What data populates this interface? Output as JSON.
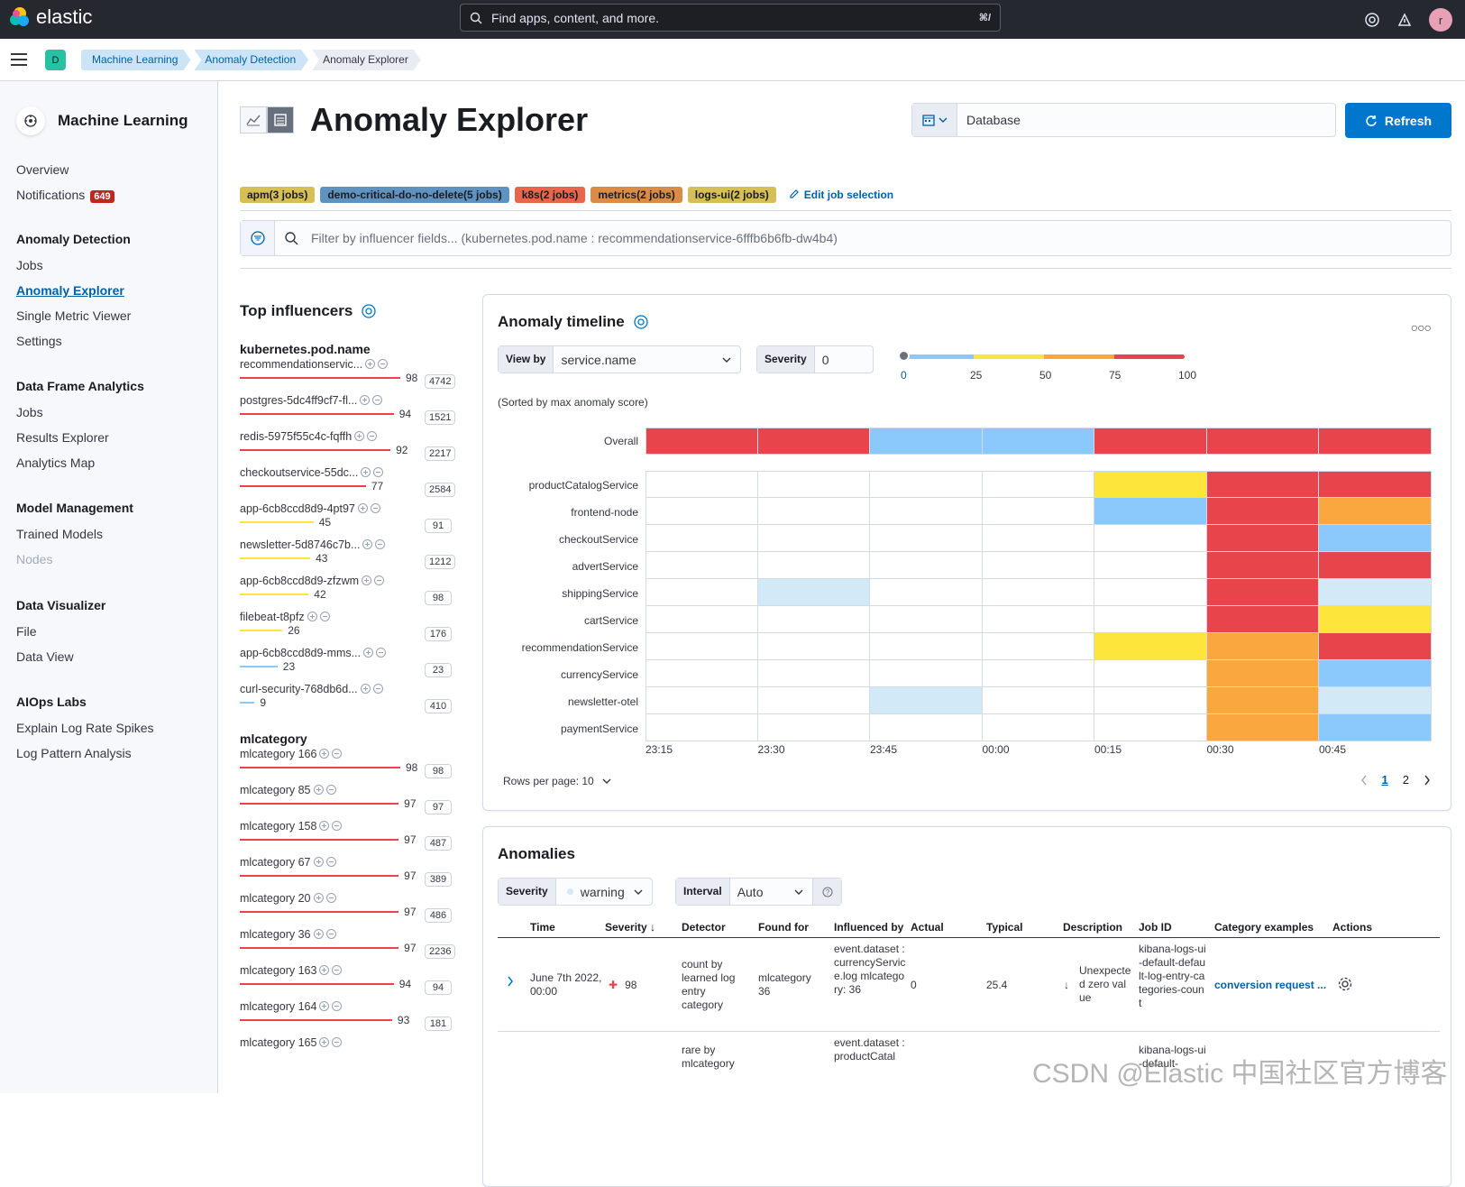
{
  "app": {
    "brand": "elastic",
    "search_placeholder": "Find apps, content, and more.",
    "search_shortcut": "⌘/",
    "avatar": "r",
    "space": "D"
  },
  "breadcrumbs": [
    "Machine Learning",
    "Anomaly Detection",
    "Anomaly Explorer"
  ],
  "sidebar": {
    "title": "Machine Learning",
    "overview": "Overview",
    "notifications": "Notifications",
    "notif_count": "649",
    "sec_ad": "Anomaly Detection",
    "ad_jobs": "Jobs",
    "ad_explorer": "Anomaly Explorer",
    "ad_smv": "Single Metric Viewer",
    "ad_settings": "Settings",
    "sec_dfa": "Data Frame Analytics",
    "dfa_jobs": "Jobs",
    "dfa_results": "Results Explorer",
    "dfa_map": "Analytics Map",
    "sec_mm": "Model Management",
    "mm_trained": "Trained Models",
    "mm_nodes": "Nodes",
    "sec_dv": "Data Visualizer",
    "dv_file": "File",
    "dv_view": "Data View",
    "sec_aiops": "AIOps Labs",
    "aiops_spikes": "Explain Log Rate Spikes",
    "aiops_pattern": "Log Pattern Analysis"
  },
  "page": {
    "title": "Anomaly Explorer",
    "date_text": "Database",
    "refresh": "Refresh",
    "jobs": [
      {
        "label": "apm(3 jobs)",
        "color": "#d6bf57"
      },
      {
        "label": "demo-critical-do-no-delete(5 jobs)",
        "color": "#6092c0"
      },
      {
        "label": "k8s(2 jobs)",
        "color": "#e7664c"
      },
      {
        "label": "metrics(2 jobs)",
        "color": "#da8b45"
      },
      {
        "label": "logs-ui(2 jobs)",
        "color": "#d36086"
      }
    ],
    "edit_jobs": "Edit job selection",
    "filter_placeholder": "Filter by influencer fields... (kubernetes.pod.name : recommendationservice-6fffb6b6fb-dw4b4)"
  },
  "influencers": {
    "title": "Top influencers",
    "groups": [
      {
        "field": "kubernetes.pod.name",
        "items": [
          {
            "name": "recommendationservic...",
            "score": "98",
            "count": "4742",
            "color": "#e7444c"
          },
          {
            "name": "postgres-5dc4ff9cf7-fl...",
            "score": "94",
            "count": "1521",
            "color": "#e7444c"
          },
          {
            "name": "redis-5975f55c4c-fqffh",
            "score": "92",
            "count": "2217",
            "color": "#e7444c"
          },
          {
            "name": "checkoutservice-55dc...",
            "score": "77",
            "count": "2584",
            "color": "#e7444c"
          },
          {
            "name": "app-6cb8ccd8d9-4pt97",
            "score": "45",
            "count": "91",
            "color": "#fde53c"
          },
          {
            "name": "newsletter-5d8746c7b...",
            "score": "43",
            "count": "1212",
            "color": "#fde53c"
          },
          {
            "name": "app-6cb8ccd8d9-zfzwm",
            "score": "42",
            "count": "98",
            "color": "#fde53c"
          },
          {
            "name": "filebeat-t8pfz",
            "score": "26",
            "count": "176",
            "color": "#fde53c"
          },
          {
            "name": "app-6cb8ccd8d9-mms...",
            "score": "23",
            "count": "23",
            "color": "#8bc8fb"
          },
          {
            "name": "curl-security-768db6d...",
            "score": "9",
            "count": "410",
            "color": "#8bc8fb"
          }
        ]
      },
      {
        "field": "mlcategory",
        "items": [
          {
            "name": "mlcategory 166",
            "score": "98",
            "count": "98",
            "color": "#e7444c"
          },
          {
            "name": "mlcategory 85",
            "score": "97",
            "count": "97",
            "color": "#e7444c"
          },
          {
            "name": "mlcategory 158",
            "score": "97",
            "count": "487",
            "color": "#e7444c"
          },
          {
            "name": "mlcategory 67",
            "score": "97",
            "count": "389",
            "color": "#e7444c"
          },
          {
            "name": "mlcategory 20",
            "score": "97",
            "count": "486",
            "color": "#e7444c"
          },
          {
            "name": "mlcategory 36",
            "score": "97",
            "count": "2236",
            "color": "#e7444c"
          },
          {
            "name": "mlcategory 163",
            "score": "94",
            "count": "94",
            "color": "#e7444c"
          },
          {
            "name": "mlcategory 164",
            "score": "93",
            "count": "181",
            "color": "#e7444c"
          },
          {
            "name": "mlcategory 165",
            "score": "",
            "count": "",
            "color": "#e7444c"
          }
        ]
      }
    ]
  },
  "timeline": {
    "title": "Anomaly timeline",
    "view_by_label": "View by",
    "view_by_value": "service.name",
    "severity_label": "Severity",
    "severity_value": "0",
    "scale_ticks": [
      "0",
      "25",
      "50",
      "75",
      "100"
    ],
    "sorted_note": "(Sorted by max anomaly score)",
    "rows_per_page": "Rows per page: 10",
    "pages": [
      "1",
      "2"
    ],
    "times": [
      "23:15",
      "23:30",
      "23:45",
      "00:00",
      "00:15",
      "00:30",
      "00:45"
    ],
    "overall_label": "Overall",
    "overall": [
      "r",
      "r",
      "b",
      "b",
      "r",
      "r",
      "r"
    ],
    "swimlanes": [
      {
        "name": "productCatalogService",
        "cells": [
          "",
          "",
          "",
          "",
          "y",
          "r",
          "r"
        ]
      },
      {
        "name": "frontend-node",
        "cells": [
          "",
          "",
          "",
          "",
          "b",
          "r",
          "o"
        ]
      },
      {
        "name": "checkoutService",
        "cells": [
          "",
          "",
          "",
          "",
          "",
          "r",
          "b"
        ]
      },
      {
        "name": "advertService",
        "cells": [
          "",
          "",
          "",
          "",
          "",
          "r",
          "r"
        ]
      },
      {
        "name": "shippingService",
        "cells": [
          "",
          "l",
          "",
          "",
          "",
          "r",
          "l"
        ]
      },
      {
        "name": "cartService",
        "cells": [
          "",
          "",
          "",
          "",
          "",
          "r",
          "y"
        ]
      },
      {
        "name": "recommendationService",
        "cells": [
          "",
          "",
          "",
          "",
          "y",
          "o",
          "r"
        ]
      },
      {
        "name": "currencyService",
        "cells": [
          "",
          "",
          "",
          "",
          "",
          "o",
          "b"
        ]
      },
      {
        "name": "newsletter-otel",
        "cells": [
          "",
          "",
          "l",
          "",
          "",
          "o",
          "l"
        ]
      },
      {
        "name": "paymentService",
        "cells": [
          "",
          "",
          "",
          "",
          "",
          "o",
          "b"
        ]
      }
    ]
  },
  "anomalies": {
    "title": "Anomalies",
    "severity_label": "Severity",
    "severity_value": "warning",
    "interval_label": "Interval",
    "interval_value": "Auto",
    "columns": [
      "Time",
      "Severity",
      "Detector",
      "Found for",
      "Influenced by",
      "Actual",
      "Typical",
      "Description",
      "Job ID",
      "Category examples",
      "Actions"
    ],
    "row1": {
      "time": "June 7th 2022, 00:00",
      "severity": "98",
      "detector": "count by learned log entry category",
      "found_for": "mlcategory 36",
      "influenced": "event.dataset : currencyService.log mlcategory: 36",
      "actual": "0",
      "typical": "25.4",
      "description": "Unexpected zero value",
      "job_id": "kibana-logs-ui-default-default-log-entry-categories-count",
      "category": "conversion request ..."
    },
    "row2": {
      "detector": "rare by mlcategory",
      "influenced": "event.dataset : productCatal",
      "job_id": "kibana-logs-ui-default-"
    }
  },
  "watermark": "CSDN @Elastic 中国社区官方博客",
  "colors": {
    "r": "#e7444c",
    "o": "#fba740",
    "y": "#fde53c",
    "b": "#8bc8fb",
    "l": "#d2e9f7",
    "accent": "#0077cc"
  }
}
